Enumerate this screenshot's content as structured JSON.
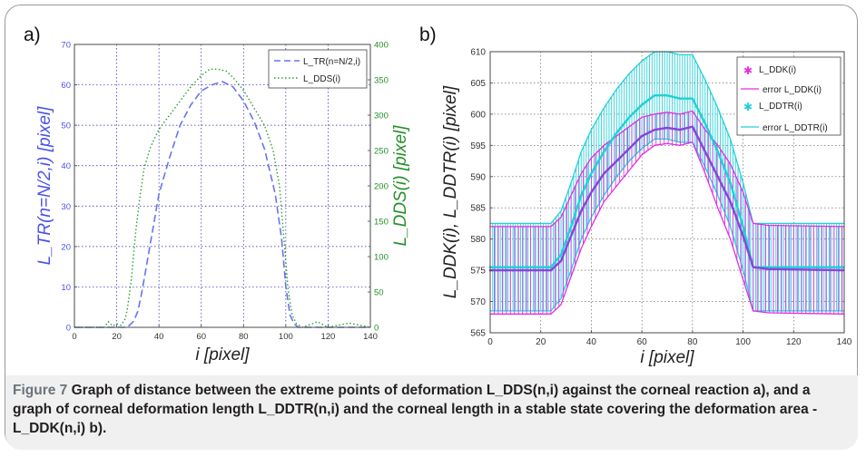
{
  "panels": {
    "a": {
      "panel_label": "a)",
      "xlabel": "i [pixel]",
      "ylabel_left": "L_TR(n=N/2,i) [pixel]",
      "ylabel_right": "L_DDS(i) [pixel]",
      "legend": [
        "L_TR(n=N/2,i)",
        "L_DDS(i)"
      ]
    },
    "b": {
      "panel_label": "b)",
      "xlabel": "i [pixel]",
      "ylabel": "L_DDK(i), L_DDTR(i) [pixel]",
      "legend": [
        "L_DDK(i)",
        "error L_DDK(i)",
        "L_DDTR(i)",
        "error L_DDTR(i)"
      ]
    }
  },
  "caption": {
    "figure_label": "Figure 7",
    "text": "Graph of distance between the extreme points of deformation L_DDS(n,i) against the corneal reaction a), and a graph of corneal deformation length L_DDTR(n,i) and the corneal length in a stable state covering the deformation area - L_DDK(n,i) b)."
  },
  "colors": {
    "ltr": "#6a73f0",
    "ldds": "#2e9e2e",
    "lddk": "#e22ee2",
    "lddtr": "#1fd0d8",
    "grid": "#2222aa"
  },
  "chart_data": [
    {
      "type": "line",
      "panel": "a",
      "xlabel": "i [pixel]",
      "xlim": [
        0,
        140
      ],
      "xticks": [
        0,
        20,
        40,
        60,
        80,
        100,
        120,
        140
      ],
      "ylabel": "L_TR(n=N/2,i) [pixel]",
      "ylim": [
        0,
        70
      ],
      "yticks": [
        0,
        10,
        20,
        30,
        40,
        50,
        60,
        70
      ],
      "y2label": "L_DDS(i) [pixel]",
      "y2lim": [
        0,
        400
      ],
      "y2ticks": [
        0,
        50,
        100,
        150,
        200,
        250,
        300,
        350,
        400
      ],
      "grid": true,
      "legend_position": "top-right",
      "series": [
        {
          "name": "L_TR(n=N/2,i)",
          "axis": "left",
          "style": "dashed",
          "x": [
            0,
            10,
            20,
            25,
            28,
            30,
            32,
            34,
            36,
            38,
            40,
            45,
            50,
            55,
            60,
            65,
            70,
            75,
            80,
            85,
            90,
            95,
            98,
            100,
            102,
            104,
            106,
            110,
            120,
            140
          ],
          "y": [
            0,
            0,
            0,
            0,
            1.5,
            4,
            9,
            15,
            21,
            27,
            33,
            42,
            50,
            55,
            58.5,
            60,
            60.8,
            59.5,
            56,
            51,
            44,
            33,
            22,
            10,
            3,
            0.8,
            0,
            0,
            0,
            0
          ]
        },
        {
          "name": "L_DDS(i)",
          "axis": "right",
          "style": "dotted",
          "x": [
            0,
            14,
            16,
            18,
            20,
            22,
            24,
            25,
            27,
            29,
            31,
            33,
            36,
            40,
            45,
            50,
            55,
            60,
            64,
            68,
            72,
            76,
            80,
            85,
            90,
            94,
            97,
            99,
            101,
            103,
            105,
            108,
            115,
            120,
            130,
            140
          ],
          "y": [
            0,
            0,
            8,
            2,
            5,
            3,
            12,
            25,
            70,
            135,
            185,
            225,
            255,
            280,
            300,
            320,
            340,
            356,
            365,
            365,
            362,
            350,
            335,
            310,
            285,
            250,
            200,
            130,
            55,
            18,
            5,
            0,
            8,
            0,
            6,
            0
          ]
        }
      ]
    },
    {
      "type": "line",
      "panel": "b",
      "xlabel": "i [pixel]",
      "xlim": [
        0,
        140
      ],
      "xticks": [
        0,
        20,
        40,
        60,
        80,
        100,
        120,
        140
      ],
      "ylabel": "L_DDK(i), L_DDTR(i) [pixel]",
      "ylim": [
        565,
        610
      ],
      "yticks": [
        565,
        570,
        575,
        580,
        585,
        590,
        595,
        600,
        605,
        610
      ],
      "grid": true,
      "legend_position": "top-right",
      "series": [
        {
          "name": "L_DDK(i)",
          "x": [
            0,
            24,
            28,
            32,
            36,
            40,
            45,
            50,
            55,
            60,
            65,
            70,
            75,
            80,
            85,
            90,
            95,
            100,
            104,
            110,
            140
          ],
          "y": [
            575,
            575,
            576.5,
            580.5,
            584.5,
            587.5,
            590.5,
            592.5,
            594.5,
            596.5,
            597.5,
            597.8,
            597.5,
            598,
            594,
            590,
            586,
            580.5,
            575.5,
            575.2,
            575
          ],
          "error": [
            7,
            7,
            7,
            6.5,
            6,
            5.5,
            4.5,
            4,
            3.5,
            3,
            2.5,
            2.5,
            2.5,
            2.5,
            3.5,
            5,
            6,
            7,
            7,
            7,
            7
          ]
        },
        {
          "name": "L_DDTR(i)",
          "x": [
            0,
            24,
            28,
            32,
            36,
            40,
            45,
            50,
            55,
            60,
            65,
            70,
            75,
            80,
            85,
            90,
            95,
            100,
            104,
            110,
            140
          ],
          "y": [
            575.5,
            575.5,
            577.5,
            582,
            587,
            590.5,
            594,
            597,
            599.5,
            601.5,
            603,
            603,
            602.5,
            602.5,
            598.5,
            594,
            589,
            582,
            575.5,
            575.5,
            575.5
          ],
          "error": [
            7,
            7,
            7,
            7,
            7,
            7,
            7,
            7,
            7,
            7,
            7,
            7,
            7,
            7,
            7,
            7,
            7,
            7,
            7,
            7,
            7
          ]
        }
      ]
    }
  ]
}
